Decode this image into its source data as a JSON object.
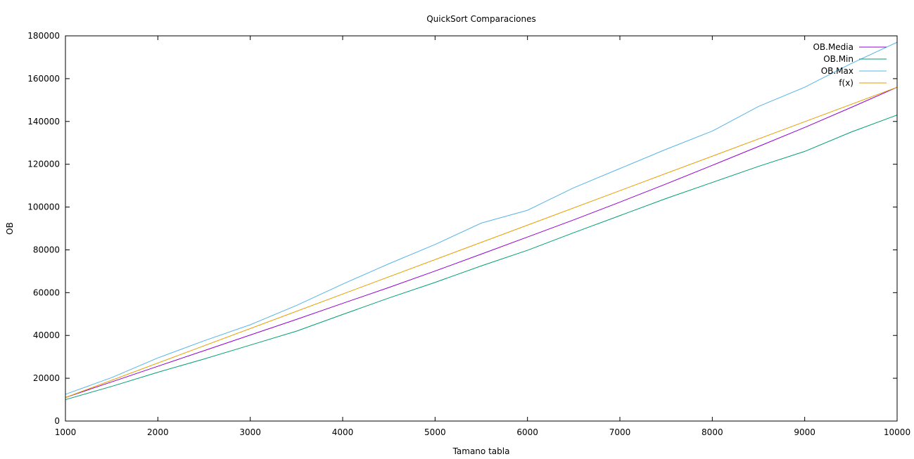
{
  "chart_data": {
    "type": "line",
    "title": "QuickSort Comparaciones",
    "xlabel": "Tamano tabla",
    "ylabel": "OB",
    "xlim": [
      1000,
      10000
    ],
    "ylim": [
      0,
      180000
    ],
    "xticks": [
      1000,
      2000,
      3000,
      4000,
      5000,
      6000,
      7000,
      8000,
      9000,
      10000
    ],
    "yticks": [
      0,
      20000,
      40000,
      60000,
      80000,
      100000,
      120000,
      140000,
      160000,
      180000
    ],
    "grid": false,
    "legend_position": "top-right",
    "series": [
      {
        "name": "OB.Media",
        "color": "#9400d3",
        "x": [
          1000,
          1500,
          2000,
          2500,
          3000,
          3500,
          4000,
          4500,
          5000,
          5500,
          6000,
          6500,
          7000,
          7500,
          8000,
          8500,
          9000,
          9500,
          10000
        ],
        "values": [
          11000,
          18300,
          25600,
          32900,
          40200,
          47500,
          55000,
          62400,
          70100,
          78000,
          86000,
          94000,
          102300,
          110800,
          119500,
          128300,
          137200,
          146500,
          156000
        ]
      },
      {
        "name": "OB.Min",
        "color": "#009e73",
        "x": [
          1000,
          1500,
          2000,
          2500,
          3000,
          3500,
          4000,
          4500,
          5000,
          5500,
          6000,
          6500,
          7000,
          7500,
          8000,
          8500,
          9000,
          9500,
          10000
        ],
        "values": [
          10000,
          16200,
          22800,
          29000,
          35500,
          42000,
          49800,
          57500,
          64800,
          72500,
          79800,
          88000,
          96000,
          104000,
          111500,
          119000,
          126000,
          135000,
          143000
        ]
      },
      {
        "name": "OB.Max",
        "color": "#56b4e9",
        "x": [
          1000,
          1500,
          2000,
          2500,
          3000,
          3500,
          4000,
          4500,
          5000,
          5500,
          6000,
          6500,
          7000,
          7500,
          8000,
          8500,
          9000,
          9500,
          10000
        ],
        "values": [
          12500,
          20300,
          29500,
          37500,
          45000,
          54000,
          64000,
          73500,
          82500,
          92500,
          98500,
          109000,
          118000,
          127000,
          135500,
          147000,
          156000,
          167000,
          177000
        ]
      },
      {
        "name": "f(x)",
        "color": "#e69f00",
        "x": [
          1000,
          10000
        ],
        "values": [
          11000,
          156000
        ]
      }
    ]
  }
}
